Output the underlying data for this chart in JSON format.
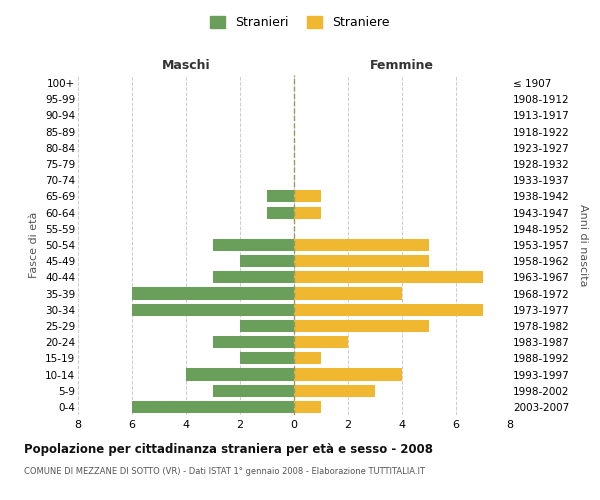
{
  "age_groups": [
    "0-4",
    "5-9",
    "10-14",
    "15-19",
    "20-24",
    "25-29",
    "30-34",
    "35-39",
    "40-44",
    "45-49",
    "50-54",
    "55-59",
    "60-64",
    "65-69",
    "70-74",
    "75-79",
    "80-84",
    "85-89",
    "90-94",
    "95-99",
    "100+"
  ],
  "birth_years": [
    "2003-2007",
    "1998-2002",
    "1993-1997",
    "1988-1992",
    "1983-1987",
    "1978-1982",
    "1973-1977",
    "1968-1972",
    "1963-1967",
    "1958-1962",
    "1953-1957",
    "1948-1952",
    "1943-1947",
    "1938-1942",
    "1933-1937",
    "1928-1932",
    "1923-1927",
    "1918-1922",
    "1913-1917",
    "1908-1912",
    "≤ 1907"
  ],
  "maschi": [
    6,
    3,
    4,
    2,
    3,
    2,
    6,
    6,
    3,
    2,
    3,
    0,
    1,
    1,
    0,
    0,
    0,
    0,
    0,
    0,
    0
  ],
  "femmine": [
    1,
    3,
    4,
    1,
    2,
    5,
    7,
    4,
    7,
    5,
    5,
    0,
    1,
    1,
    0,
    0,
    0,
    0,
    0,
    0,
    0
  ],
  "color_maschi": "#6a9e5b",
  "color_femmine": "#f0b830",
  "title_main": "Popolazione per cittadinanza straniera per età e sesso - 2008",
  "title_sub": "COMUNE DI MEZZANE DI SOTTO (VR) - Dati ISTAT 1° gennaio 2008 - Elaborazione TUTTITALIA.IT",
  "ylabel_left": "Fasce di età",
  "ylabel_right": "Anni di nascita",
  "xlabel_left": "Maschi",
  "xlabel_right": "Femmine",
  "legend_maschi": "Stranieri",
  "legend_femmine": "Straniere",
  "xlim": 8,
  "background_color": "#ffffff",
  "grid_color": "#cccccc"
}
